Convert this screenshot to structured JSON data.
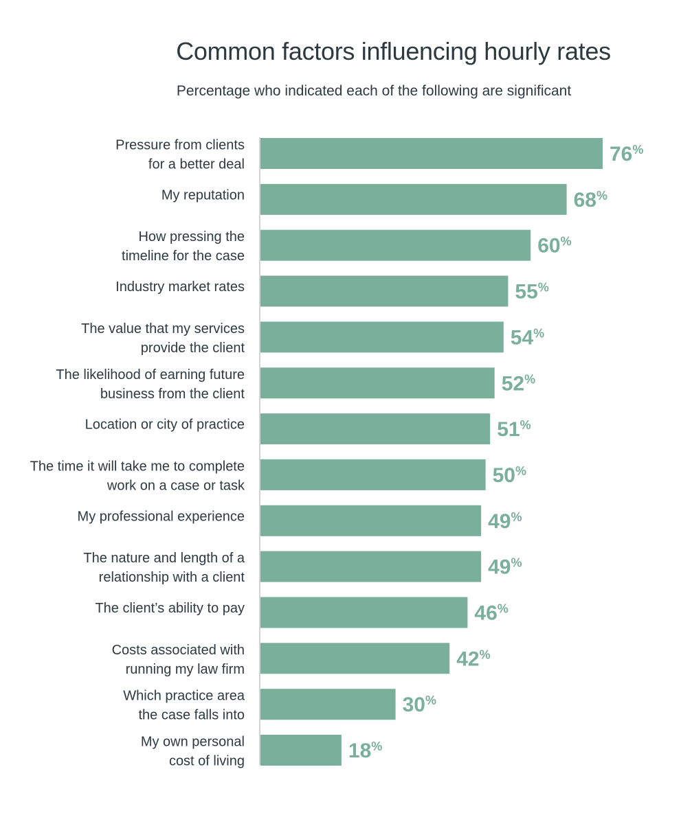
{
  "chart_data": {
    "type": "bar",
    "orientation": "horizontal",
    "title": "Common factors influencing hourly rates",
    "subtitle": "Percentage who indicated each of the following are significant",
    "xlabel": "",
    "ylabel": "",
    "xlim": [
      0,
      76
    ],
    "bar_color": "#7aaf9c",
    "value_suffix": "%",
    "categories": [
      [
        "Pressure from clients",
        "for a better deal"
      ],
      [
        "My reputation"
      ],
      [
        "How pressing the",
        "timeline for the case"
      ],
      [
        "Industry market rates"
      ],
      [
        "The value that my services",
        "provide the client"
      ],
      [
        "The likelihood of earning future",
        "business from the client"
      ],
      [
        "Location or city of practice"
      ],
      [
        "The time it will take me to complete",
        "work on a case or task"
      ],
      [
        "My professional experience"
      ],
      [
        "The nature and length of a",
        "relationship with a client"
      ],
      [
        "The client’s ability to pay"
      ],
      [
        "Costs associated with",
        "running my law firm"
      ],
      [
        "Which practice area",
        "the case falls into"
      ],
      [
        "My own personal",
        "cost of living"
      ]
    ],
    "values": [
      76,
      68,
      60,
      55,
      54,
      52,
      51,
      50,
      49,
      49,
      46,
      42,
      30,
      18
    ]
  }
}
